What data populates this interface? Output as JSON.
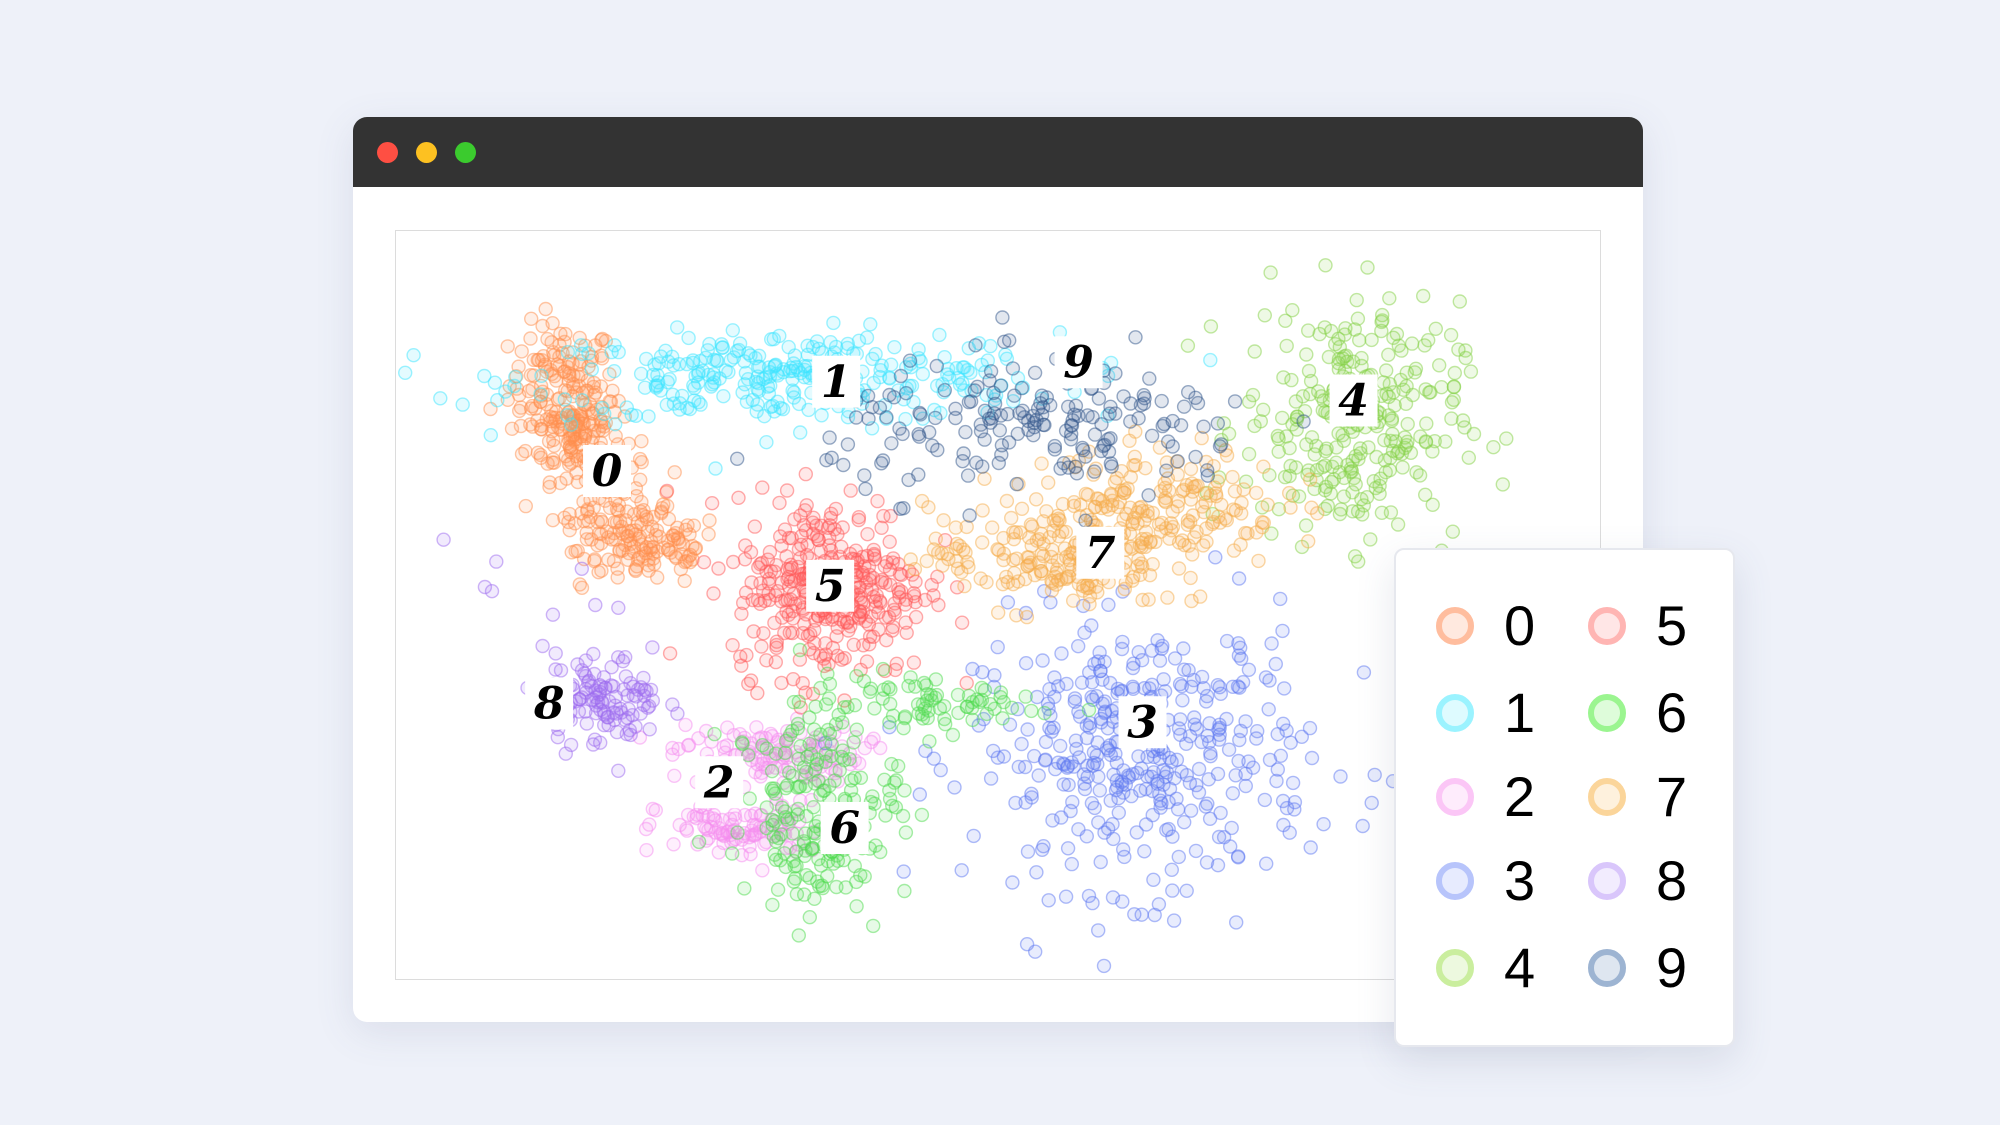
{
  "window": {
    "controls": [
      {
        "name": "close",
        "color": "#fe4f43"
      },
      {
        "name": "minimize",
        "color": "#fdc121"
      },
      {
        "name": "maximize",
        "color": "#3bcb2e"
      }
    ]
  },
  "chart_data": {
    "type": "scatter",
    "title": "",
    "xlabel": "",
    "ylabel": "",
    "axes_visible": false,
    "grid": false,
    "xlim": [
      0,
      100
    ],
    "ylim": [
      0,
      100
    ],
    "legend_placement": "bottom-right, outside",
    "clusters": [
      {
        "label": "0",
        "color": "#ff8f4d",
        "label_pos": [
          17.5,
          68
        ],
        "blobs": [
          [
            13.8,
            79.6,
            2.2,
            4,
            120
          ],
          [
            14.8,
            72.8,
            2.0,
            3,
            110
          ],
          [
            18,
            62.6,
            2.5,
            3,
            90
          ],
          [
            21.2,
            57.5,
            3,
            2.5,
            90
          ]
        ]
      },
      {
        "label": "1",
        "color": "#3de6ff",
        "label_pos": [
          36.5,
          79.9
        ],
        "blobs": [
          [
            32.8,
            80.4,
            11,
            3,
            300
          ]
        ]
      },
      {
        "label": "2",
        "color": "#f58ef0",
        "label_pos": [
          26.8,
          26.5
        ],
        "blobs": [
          [
            30.7,
            30.3,
            4,
            2,
            120
          ],
          [
            28.6,
            20,
            3.5,
            2,
            100
          ]
        ]
      },
      {
        "label": "3",
        "color": "#5f79f2",
        "label_pos": [
          61.9,
          34.5
        ],
        "blobs": [
          [
            61.9,
            30.3,
            7,
            9,
            400
          ]
        ]
      },
      {
        "label": "4",
        "color": "#86d148",
        "label_pos": [
          79.4,
          77.4
        ],
        "blobs": [
          [
            79.2,
            74.5,
            4.5,
            8,
            280
          ]
        ]
      },
      {
        "label": "5",
        "color": "#ff5959",
        "label_pos": [
          36,
          52.7
        ],
        "blobs": [
          [
            36,
            52.7,
            4,
            6,
            350
          ]
        ]
      },
      {
        "label": "6",
        "color": "#4fdc4f",
        "label_pos": [
          37.2,
          20.4
        ],
        "blobs": [
          [
            34.9,
            25.2,
            3.5,
            5,
            140
          ],
          [
            43.4,
            37,
            5,
            2,
            80
          ],
          [
            33.9,
            15,
            2.5,
            3,
            50
          ]
        ]
      },
      {
        "label": "7",
        "color": "#f5ad4c",
        "label_pos": [
          58.4,
          57.1
        ],
        "blobs": [
          [
            54,
            56.6,
            5,
            3.5,
            180
          ],
          [
            63.5,
            63.4,
            5,
            4,
            180
          ]
        ]
      },
      {
        "label": "8",
        "color": "#9d6cf0",
        "label_pos": [
          12.7,
          37
        ],
        "blobs": [
          [
            16.9,
            37.4,
            2.5,
            3,
            120
          ],
          [
            12,
            50,
            4,
            4,
            10
          ]
        ]
      },
      {
        "label": "9",
        "color": "#33588c",
        "label_pos": [
          56.6,
          82.5
        ],
        "blobs": [
          [
            54,
            73.6,
            9,
            4.5,
            180
          ]
        ]
      }
    ]
  },
  "legend": {
    "items": [
      {
        "label": "0",
        "color": "#ffbd9e"
      },
      {
        "label": "1",
        "color": "#9bf3ff"
      },
      {
        "label": "2",
        "color": "#fbc6f6"
      },
      {
        "label": "3",
        "color": "#b7c4fb"
      },
      {
        "label": "4",
        "color": "#caee9e"
      },
      {
        "label": "5",
        "color": "#ffb5b3"
      },
      {
        "label": "6",
        "color": "#9bf590"
      },
      {
        "label": "7",
        "color": "#fbd59a"
      },
      {
        "label": "8",
        "color": "#d9c6fb"
      },
      {
        "label": "9",
        "color": "#9db4d2"
      }
    ]
  }
}
